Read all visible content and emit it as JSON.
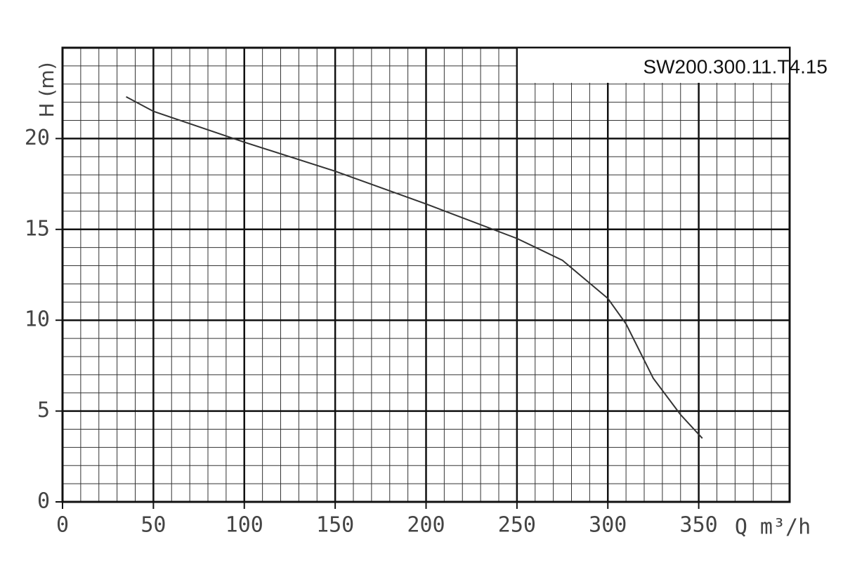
{
  "chart_data": {
    "type": "line",
    "title": "SW200.300.11.T4.15",
    "x_label": "Q m³/h",
    "y_label": "H (m)",
    "xlim": [
      0,
      400
    ],
    "xticks": [
      0,
      50,
      100,
      150,
      200,
      250,
      300,
      350
    ],
    "ylim": [
      0,
      25
    ],
    "yticks": [
      0,
      5,
      10,
      15,
      20
    ],
    "grid": true,
    "series": [
      {
        "name": "H",
        "color": "#333333",
        "x": [
          35,
          50,
          100,
          150,
          200,
          250,
          275,
          300,
          310,
          325,
          340,
          352
        ],
        "values": [
          22.3,
          21.5,
          19.8,
          18.2,
          16.4,
          14.5,
          13.3,
          11.2,
          9.8,
          6.8,
          4.8,
          3.5
        ]
      }
    ]
  }
}
